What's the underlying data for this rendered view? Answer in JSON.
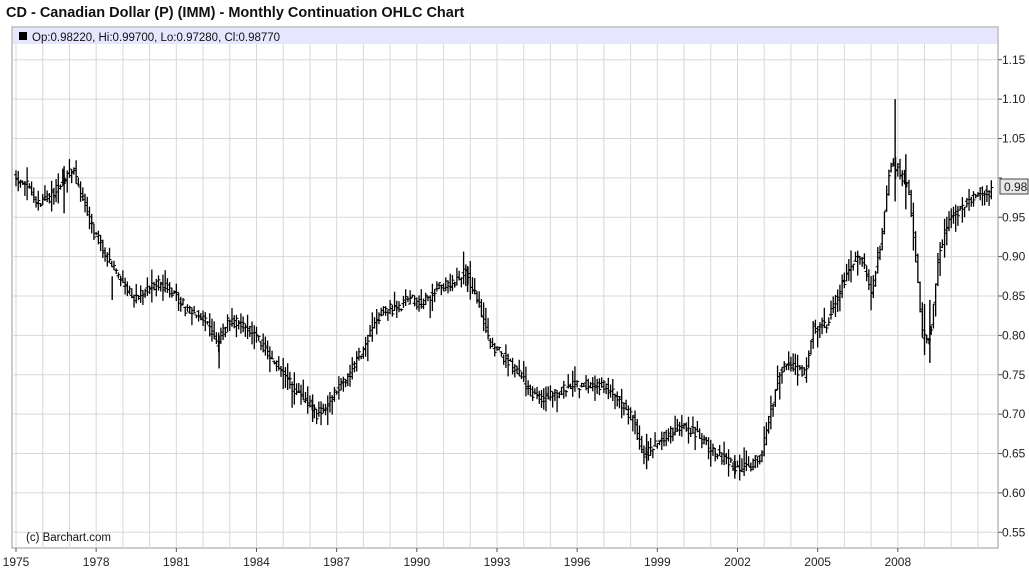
{
  "page": {
    "title": "CD - Canadian Dollar (P) (IMM) - Monthly Continuation OHLC Chart",
    "ohlc_readout": "Op:0.98220, Hi:0.99700, Lo:0.97280, Cl:0.98770",
    "copyright": "(c) Barchart.com",
    "last_price_label": "0.98"
  },
  "colors": {
    "bars": "#000000",
    "grid": "#d8d8d8",
    "header_band": "#e6e6ff",
    "last_price_box": "#e8e8e8"
  },
  "chart_data": {
    "type": "ohlc",
    "title": "CD - Canadian Dollar (P) (IMM) - Monthly Continuation OHLC Chart",
    "interval": "monthly",
    "xlabel": "",
    "ylabel": "",
    "x_ticks": [
      "1975",
      "1978",
      "1981",
      "1984",
      "1987",
      "1990",
      "1993",
      "1996",
      "1999",
      "2002",
      "2005",
      "2008"
    ],
    "y_ticks": [
      "0.55",
      "0.60",
      "0.65",
      "0.70",
      "0.75",
      "0.80",
      "0.85",
      "0.90",
      "0.95",
      "1.05",
      "1.10",
      "1.15"
    ],
    "ylim": [
      0.53,
      1.17
    ],
    "xlim": [
      1975.0,
      2011.6
    ],
    "grid": true,
    "last": {
      "open": 0.9822,
      "high": 0.997,
      "low": 0.9728,
      "close": 0.9877
    },
    "trend": [
      [
        1975.0,
        1.0
      ],
      [
        1975.5,
        0.99
      ],
      [
        1975.9,
        0.965
      ],
      [
        1976.5,
        0.98
      ],
      [
        1976.9,
        1.0
      ],
      [
        1977.2,
        1.01
      ],
      [
        1977.6,
        0.97
      ],
      [
        1978.0,
        0.93
      ],
      [
        1978.5,
        0.9
      ],
      [
        1979.0,
        0.87
      ],
      [
        1979.5,
        0.845
      ],
      [
        1980.0,
        0.86
      ],
      [
        1980.5,
        0.865
      ],
      [
        1981.0,
        0.855
      ],
      [
        1981.5,
        0.83
      ],
      [
        1981.9,
        0.83
      ],
      [
        1982.3,
        0.81
      ],
      [
        1982.6,
        0.79
      ],
      [
        1983.0,
        0.815
      ],
      [
        1983.5,
        0.815
      ],
      [
        1984.0,
        0.805
      ],
      [
        1984.5,
        0.775
      ],
      [
        1985.0,
        0.755
      ],
      [
        1985.5,
        0.73
      ],
      [
        1986.0,
        0.715
      ],
      [
        1986.3,
        0.7
      ],
      [
        1986.8,
        0.715
      ],
      [
        1987.3,
        0.74
      ],
      [
        1987.8,
        0.765
      ],
      [
        1988.3,
        0.8
      ],
      [
        1988.8,
        0.83
      ],
      [
        1989.3,
        0.835
      ],
      [
        1989.8,
        0.845
      ],
      [
        1990.3,
        0.84
      ],
      [
        1990.8,
        0.86
      ],
      [
        1991.3,
        0.865
      ],
      [
        1991.9,
        0.88
      ],
      [
        1992.4,
        0.84
      ],
      [
        1992.8,
        0.79
      ],
      [
        1993.3,
        0.775
      ],
      [
        1993.8,
        0.755
      ],
      [
        1994.3,
        0.73
      ],
      [
        1994.8,
        0.72
      ],
      [
        1995.3,
        0.725
      ],
      [
        1995.8,
        0.735
      ],
      [
        1996.3,
        0.735
      ],
      [
        1996.8,
        0.74
      ],
      [
        1997.3,
        0.73
      ],
      [
        1997.8,
        0.71
      ],
      [
        1998.2,
        0.69
      ],
      [
        1998.6,
        0.645
      ],
      [
        1999.1,
        0.665
      ],
      [
        1999.6,
        0.675
      ],
      [
        2000.1,
        0.685
      ],
      [
        2000.6,
        0.675
      ],
      [
        2001.1,
        0.655
      ],
      [
        2001.6,
        0.645
      ],
      [
        2002.1,
        0.63
      ],
      [
        2002.6,
        0.635
      ],
      [
        2003.0,
        0.65
      ],
      [
        2003.3,
        0.7
      ],
      [
        2003.7,
        0.76
      ],
      [
        2004.2,
        0.76
      ],
      [
        2004.6,
        0.75
      ],
      [
        2004.9,
        0.81
      ],
      [
        2005.4,
        0.815
      ],
      [
        2005.9,
        0.855
      ],
      [
        2006.3,
        0.89
      ],
      [
        2006.7,
        0.9
      ],
      [
        2007.1,
        0.855
      ],
      [
        2007.5,
        0.93
      ],
      [
        2007.8,
        1.02
      ],
      [
        2008.1,
        1.01
      ],
      [
        2008.5,
        0.985
      ],
      [
        2008.8,
        0.88
      ],
      [
        2009.0,
        0.8
      ],
      [
        2009.3,
        0.8
      ],
      [
        2009.6,
        0.9
      ],
      [
        2010.0,
        0.95
      ],
      [
        2010.4,
        0.96
      ],
      [
        2010.8,
        0.975
      ],
      [
        2011.2,
        0.985
      ],
      [
        2011.5,
        0.98
      ]
    ],
    "spikes": [
      [
        1976.8,
        0.955,
        1.015
      ],
      [
        1978.6,
        0.845,
        0.875
      ],
      [
        1982.6,
        0.758,
        0.8
      ],
      [
        1986.1,
        0.69,
        0.725
      ],
      [
        1991.9,
        0.855,
        0.888
      ],
      [
        1998.6,
        0.63,
        0.675
      ],
      [
        2001.9,
        0.618,
        0.648
      ],
      [
        2007.9,
        0.97,
        1.1
      ],
      [
        2008.3,
        0.96,
        1.03
      ],
      [
        2009.0,
        0.775,
        0.84
      ],
      [
        2009.2,
        0.765,
        0.845
      ]
    ]
  }
}
